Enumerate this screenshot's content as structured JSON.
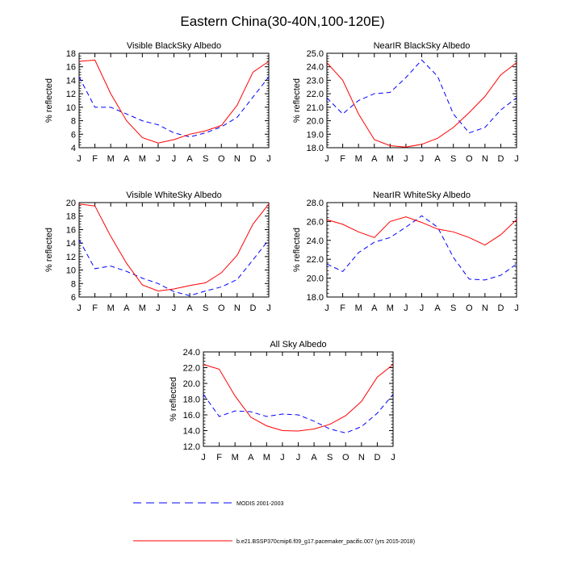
{
  "figure": {
    "title": "Eastern China(30-40N,100-120E)",
    "colors": {
      "model": "#ff0000",
      "obs": "#0000ff",
      "axis": "#000000"
    }
  },
  "legend": {
    "obs_label": "MODIS 2001-2003",
    "model_label": "b.e21.BSSP370cmip6.f09_g17.pacemaker_pacific.007 (yrs 2015-2018)"
  },
  "chart_data": [
    {
      "type": "line",
      "title": "Visible BlackSky Albedo",
      "ylabel": "% reflected",
      "xlabel": "",
      "categories": [
        "J",
        "F",
        "M",
        "A",
        "M",
        "J",
        "J",
        "A",
        "S",
        "O",
        "N",
        "D",
        "J"
      ],
      "ylim": [
        4,
        18
      ],
      "yticks": [
        4,
        6,
        8,
        10,
        12,
        14,
        16,
        18
      ],
      "ytick_labels": [
        "4",
        "6",
        "8",
        "10",
        "12",
        "14",
        "16",
        "18"
      ],
      "series": [
        {
          "key": "obs",
          "values": [
            14.5,
            10.0,
            10.0,
            9.0,
            8.0,
            7.4,
            6.2,
            5.6,
            6.2,
            7.1,
            8.5,
            11.5,
            14.5
          ]
        },
        {
          "key": "model",
          "values": [
            16.8,
            17.0,
            12.0,
            8.0,
            5.5,
            4.7,
            5.2,
            6.0,
            6.5,
            7.3,
            10.3,
            15.2,
            16.8
          ]
        }
      ]
    },
    {
      "type": "line",
      "title": "NearIR BlackSky Albedo",
      "ylabel": "% reflected",
      "xlabel": "",
      "categories": [
        "J",
        "F",
        "M",
        "A",
        "M",
        "J",
        "J",
        "A",
        "S",
        "O",
        "N",
        "D",
        "J"
      ],
      "ylim": [
        18.0,
        25.0
      ],
      "yticks": [
        18.0,
        19.0,
        20.0,
        21.0,
        22.0,
        23.0,
        24.0,
        25.0
      ],
      "ytick_labels": [
        "18.0",
        "19.0",
        "20.0",
        "21.0",
        "22.0",
        "23.0",
        "24.0",
        "25.0"
      ],
      "series": [
        {
          "key": "obs",
          "values": [
            21.7,
            20.5,
            21.5,
            22.0,
            22.1,
            23.2,
            24.5,
            23.3,
            20.5,
            19.1,
            19.5,
            20.8,
            21.7
          ]
        },
        {
          "key": "model",
          "values": [
            24.3,
            23.0,
            20.5,
            18.6,
            18.15,
            18.05,
            18.25,
            18.7,
            19.5,
            20.6,
            21.8,
            23.4,
            24.3
          ]
        }
      ]
    },
    {
      "type": "line",
      "title": "Visible WhiteSky Albedo",
      "ylabel": "% reflected",
      "xlabel": "",
      "categories": [
        "J",
        "F",
        "M",
        "A",
        "M",
        "J",
        "J",
        "A",
        "S",
        "O",
        "N",
        "D",
        "J"
      ],
      "ylim": [
        6,
        20
      ],
      "yticks": [
        6,
        8,
        10,
        12,
        14,
        16,
        18,
        20
      ],
      "ytick_labels": [
        "6",
        "8",
        "10",
        "12",
        "14",
        "16",
        "18",
        "20"
      ],
      "series": [
        {
          "key": "obs",
          "values": [
            14.5,
            10.2,
            10.6,
            9.8,
            8.8,
            8.0,
            6.8,
            6.2,
            6.9,
            7.5,
            8.6,
            11.5,
            14.5
          ]
        },
        {
          "key": "model",
          "values": [
            19.8,
            19.5,
            15.0,
            11.0,
            7.8,
            6.9,
            7.2,
            7.7,
            8.1,
            9.6,
            12.2,
            16.8,
            19.8
          ]
        }
      ]
    },
    {
      "type": "line",
      "title": "NearIR WhiteSky Albedo",
      "ylabel": "% reflected",
      "xlabel": "",
      "categories": [
        "J",
        "F",
        "M",
        "A",
        "M",
        "J",
        "J",
        "A",
        "S",
        "O",
        "N",
        "D",
        "J"
      ],
      "ylim": [
        18.0,
        28.0
      ],
      "yticks": [
        18.0,
        20.0,
        22.0,
        24.0,
        26.0,
        28.0
      ],
      "ytick_labels": [
        "18.0",
        "20.0",
        "22.0",
        "24.0",
        "26.0",
        "28.0"
      ],
      "series": [
        {
          "key": "obs",
          "values": [
            21.5,
            20.7,
            22.7,
            23.8,
            24.3,
            25.4,
            26.6,
            25.4,
            22.2,
            19.9,
            19.8,
            20.3,
            21.5
          ]
        },
        {
          "key": "model",
          "values": [
            26.2,
            25.7,
            24.9,
            24.3,
            26.0,
            26.5,
            25.9,
            25.2,
            24.9,
            24.3,
            23.5,
            24.6,
            26.2
          ]
        }
      ]
    },
    {
      "type": "line",
      "title": "All Sky Albedo",
      "ylabel": "% reflected",
      "xlabel": "",
      "categories": [
        "J",
        "F",
        "M",
        "A",
        "M",
        "J",
        "J",
        "A",
        "S",
        "O",
        "N",
        "D",
        "J"
      ],
      "ylim": [
        12.0,
        24.0
      ],
      "yticks": [
        12.0,
        14.0,
        16.0,
        18.0,
        20.0,
        22.0,
        24.0
      ],
      "ytick_labels": [
        "12.0",
        "14.0",
        "16.0",
        "18.0",
        "20.0",
        "22.0",
        "24.0"
      ],
      "series": [
        {
          "key": "obs",
          "values": [
            18.6,
            15.8,
            16.5,
            16.4,
            15.8,
            16.1,
            16.0,
            15.2,
            14.2,
            13.7,
            14.5,
            16.2,
            18.6
          ]
        },
        {
          "key": "model",
          "values": [
            22.4,
            21.8,
            18.4,
            15.7,
            14.6,
            14.0,
            13.95,
            14.2,
            14.8,
            15.9,
            17.7,
            20.8,
            22.4
          ]
        }
      ]
    }
  ]
}
